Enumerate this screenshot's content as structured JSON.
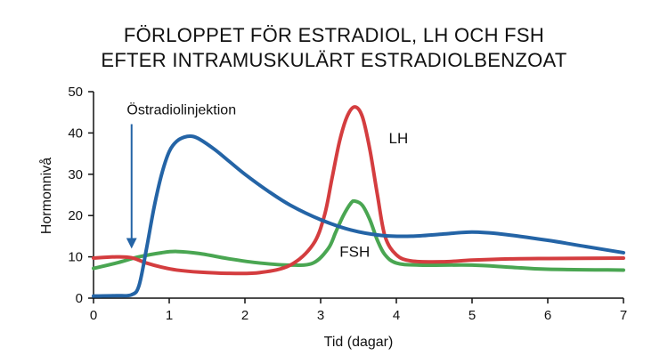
{
  "chart_data": {
    "type": "line",
    "title_line1": "FÖRLOPPET FÖR ESTRADIOL, LH OCH FSH",
    "title_line2": "EFTER INTRAMUSKULÄRT ESTRADIOLBENZOAT",
    "xlabel": "Tid (dagar)",
    "ylabel": "Hormonnivå",
    "xlim": [
      0,
      7
    ],
    "ylim": [
      0,
      50
    ],
    "xticks": [
      0,
      1,
      2,
      3,
      4,
      5,
      6,
      7
    ],
    "yticks": [
      0,
      10,
      20,
      30,
      40,
      50
    ],
    "grid": false,
    "legend": "none",
    "annotation": {
      "text": "Östradiolinjektion",
      "x": 0.55,
      "arrow_from_y": 43,
      "arrow_to_y": 12
    },
    "series": [
      {
        "name": "",
        "color": "#2464a6",
        "x": [
          0,
          0.3,
          0.5,
          0.6,
          0.7,
          0.8,
          0.9,
          1.0,
          1.1,
          1.2,
          1.3,
          1.4,
          1.6,
          1.8,
          2.0,
          2.3,
          2.6,
          3.0,
          3.4,
          3.8,
          4.2,
          4.6,
          5.0,
          5.4,
          6.0,
          6.5,
          7.0
        ],
        "values": [
          0.5,
          0.6,
          0.8,
          3,
          12,
          22,
          30,
          35.5,
          38,
          39,
          39.2,
          38.5,
          36,
          33,
          30,
          26,
          22.5,
          19,
          16.5,
          15.2,
          15,
          15.5,
          16,
          15.5,
          14,
          12.5,
          11
        ]
      },
      {
        "name": "LH",
        "color": "#d43d3f",
        "x": [
          0,
          0.3,
          0.5,
          0.7,
          0.9,
          1.1,
          1.4,
          1.8,
          2.2,
          2.6,
          2.9,
          3.05,
          3.15,
          3.25,
          3.35,
          3.45,
          3.55,
          3.65,
          3.75,
          3.85,
          4.0,
          4.2,
          4.6,
          5.0,
          5.5,
          6.0,
          7.0
        ],
        "values": [
          9.7,
          10,
          9.8,
          8.5,
          7.5,
          6.8,
          6.3,
          6,
          6.2,
          8,
          13,
          20,
          29,
          38,
          44,
          46.3,
          44,
          36,
          25,
          15,
          10.5,
          9,
          8.8,
          9.2,
          9.5,
          9.6,
          9.7
        ]
      },
      {
        "name": "FSH",
        "color": "#4aa652",
        "x": [
          0,
          0.3,
          0.6,
          0.9,
          1.1,
          1.4,
          1.8,
          2.2,
          2.6,
          2.9,
          3.1,
          3.2,
          3.3,
          3.4,
          3.45,
          3.55,
          3.65,
          3.75,
          3.85,
          4.0,
          4.3,
          5.0,
          5.5,
          6.0,
          7.0
        ],
        "values": [
          7.2,
          8.5,
          10,
          11,
          11.3,
          10.8,
          9.5,
          8.5,
          8,
          8.5,
          12,
          16,
          20,
          23,
          23.5,
          22.5,
          19,
          14,
          10.5,
          8.5,
          8,
          8,
          7.5,
          7,
          6.8
        ]
      }
    ]
  }
}
